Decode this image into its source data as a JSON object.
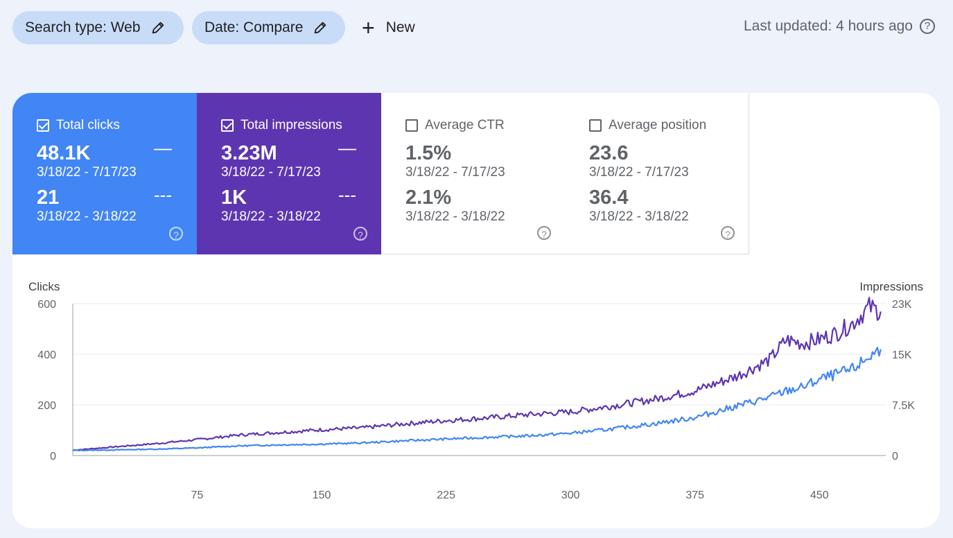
{
  "filters": {
    "search_type": "Search type: Web",
    "date": "Date: Compare",
    "new_label": "New"
  },
  "last_updated": "Last updated: 4 hours ago",
  "colors": {
    "clicks": "#4285f4",
    "impressions": "#5e35b1",
    "background": "#eef2fb",
    "chip": "#c8dcf8"
  },
  "metrics": [
    {
      "label": "Total clicks",
      "checked": true,
      "value": "48.1K",
      "range": "3/18/22 - 7/17/23",
      "compare_value": "21",
      "compare_range": "3/18/22 - 3/18/22"
    },
    {
      "label": "Total impressions",
      "checked": true,
      "value": "3.23M",
      "range": "3/18/22 - 7/17/23",
      "compare_value": "1K",
      "compare_range": "3/18/22 - 3/18/22"
    },
    {
      "label": "Average CTR",
      "checked": false,
      "value": "1.5%",
      "range": "3/18/22 - 7/17/23",
      "compare_value": "2.1%",
      "compare_range": "3/18/22 - 3/18/22"
    },
    {
      "label": "Average position",
      "checked": false,
      "value": "23.6",
      "range": "3/18/22 - 7/17/23",
      "compare_value": "36.4",
      "compare_range": "3/18/22 - 3/18/22"
    }
  ],
  "chart_data": {
    "type": "line",
    "left_axis_label": "Clicks",
    "right_axis_label": "Impressions",
    "left_ticks": [
      "0",
      "200",
      "400",
      "600"
    ],
    "left_ylim": [
      0,
      600
    ],
    "right_ticks": [
      "0",
      "7.5K",
      "15K",
      "23K"
    ],
    "right_ylim": [
      0,
      23000
    ],
    "x_ticks": [
      "75",
      "150",
      "225",
      "300",
      "375",
      "450"
    ],
    "xlim": [
      0,
      490
    ],
    "grid": true,
    "x": [
      0,
      25,
      50,
      75,
      100,
      125,
      150,
      175,
      200,
      225,
      250,
      275,
      300,
      325,
      350,
      375,
      400,
      420,
      430,
      440,
      450,
      460,
      470,
      480,
      487
    ],
    "series": [
      {
        "name": "Clicks",
        "axis": "left",
        "color": "#4285f4",
        "values": [
          20,
          22,
          25,
          30,
          38,
          42,
          45,
          50,
          58,
          65,
          72,
          78,
          88,
          105,
          125,
          150,
          195,
          230,
          255,
          270,
          300,
          320,
          340,
          390,
          420
        ]
      },
      {
        "name": "Impressions",
        "axis": "right",
        "color": "#5e35b1",
        "values": [
          800,
          1300,
          1800,
          2400,
          3100,
          3500,
          3900,
          4200,
          4800,
          5300,
          5700,
          6200,
          6600,
          7500,
          8500,
          9800,
          12000,
          14500,
          17500,
          17000,
          17600,
          18500,
          20000,
          22500,
          21800
        ]
      }
    ]
  }
}
